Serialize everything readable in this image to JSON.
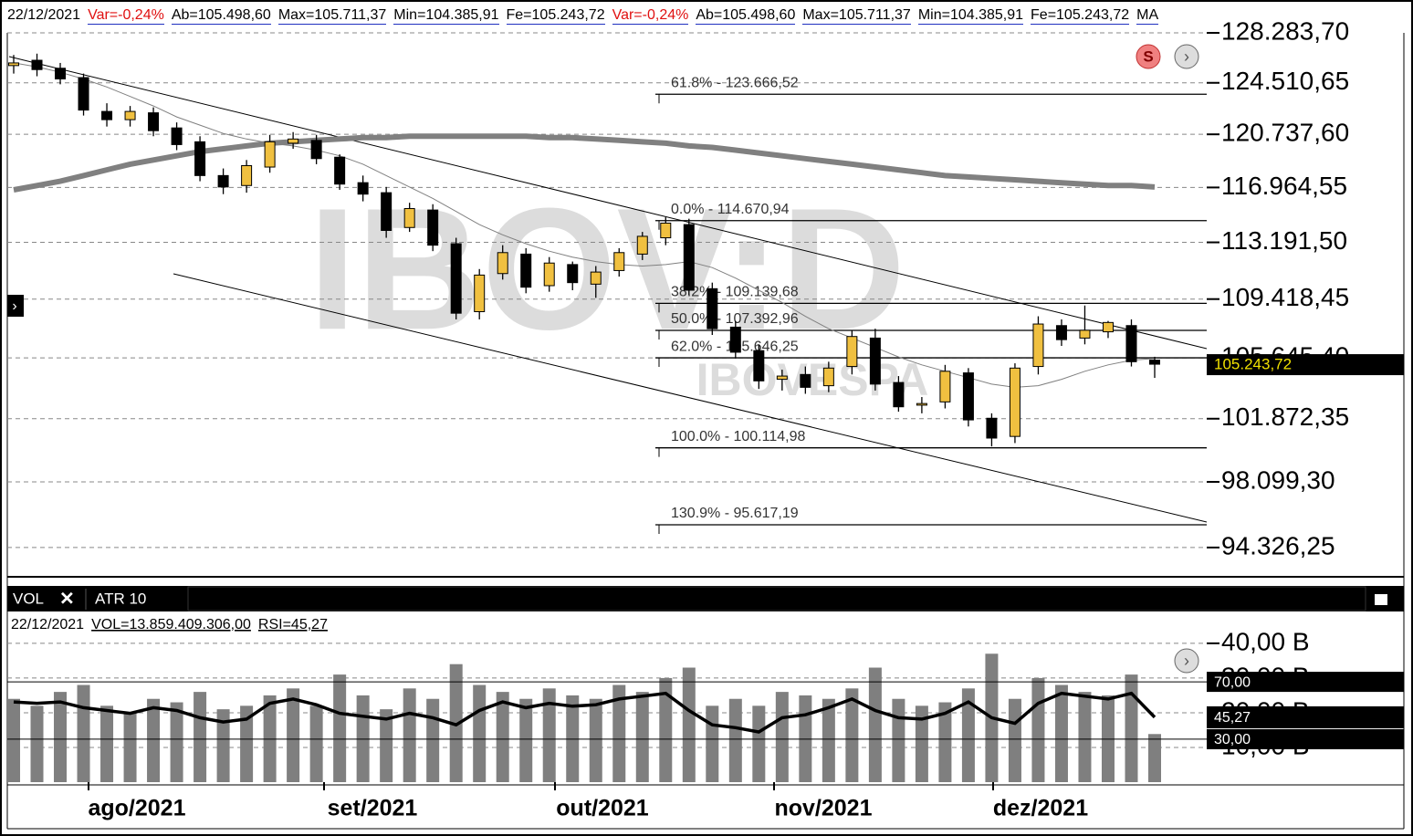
{
  "chart_data": {
    "type": "candlestick",
    "log": true,
    "header": [
      {
        "text": "22/12/2021",
        "color": "#000000"
      },
      {
        "text": "Var=-0,24%",
        "color": "#e01010"
      },
      {
        "text": "Ab=105.498,60",
        "color": "#000000"
      },
      {
        "text": "Max=105.711,37",
        "color": "#000000"
      },
      {
        "text": "Min=104.385,91",
        "color": "#000000"
      },
      {
        "text": "Fe=105.243,72",
        "color": "#000000"
      },
      {
        "text": "Var=-0,24%",
        "color": "#e01010"
      },
      {
        "text": "Ab=105.498,60",
        "color": "#000000"
      },
      {
        "text": "Max=105.711,37",
        "color": "#000000"
      },
      {
        "text": "Min=104.385,91",
        "color": "#000000"
      },
      {
        "text": "Fe=105.243,72",
        "color": "#000000"
      },
      {
        "text": "MA",
        "color": "#000000"
      }
    ],
    "watermark": [
      "IBOV:D",
      "IBOVESPA"
    ],
    "months": [
      "ago/2021",
      "set/2021",
      "out/2021",
      "nov/2021",
      "dez/2021"
    ],
    "ylim": [
      92690,
      128283.7
    ],
    "yticks": [
      {
        "value": 94326.25,
        "label": "94.326,25"
      },
      {
        "value": 98099.3,
        "label": "98.099,30"
      },
      {
        "value": 101872.35,
        "label": "101.872,35"
      },
      {
        "value": 105645.4,
        "label": "105.645,40"
      },
      {
        "value": 109418.45,
        "label": "109.418,45"
      },
      {
        "value": 113191.5,
        "label": "113.191,50"
      },
      {
        "value": 116964.55,
        "label": "116.964,55"
      },
      {
        "value": 120737.6,
        "label": "120.737,60"
      },
      {
        "value": 124510.65,
        "label": "124.510,65"
      },
      {
        "value": 128283.7,
        "label": "128.283,70"
      }
    ],
    "grid": true,
    "up_color": "#f0c040",
    "down_color": "#000000",
    "candles": {
      "open": [
        125800,
        126200,
        125600,
        124900,
        122400,
        121800,
        122300,
        121200,
        120200,
        117800,
        117100,
        118400,
        120100,
        120300,
        119100,
        117300,
        116600,
        114200,
        115400,
        113100,
        108600,
        111100,
        112400,
        110300,
        111700,
        110400,
        111300,
        112400,
        113500,
        114400,
        110100,
        107600,
        106100,
        104300,
        104600,
        103900,
        105100,
        106900,
        104100,
        102700,
        102900,
        104700,
        101900,
        100800,
        105100,
        107700,
        106900,
        107300,
        107700,
        105498.6
      ],
      "high": [
        126600,
        126700,
        126000,
        125200,
        123000,
        122800,
        122700,
        121600,
        120600,
        118300,
        118900,
        120700,
        120900,
        120700,
        119300,
        117800,
        117000,
        115900,
        115800,
        113500,
        111400,
        113000,
        112800,
        112200,
        111900,
        111600,
        112800,
        113900,
        114900,
        114800,
        110500,
        108000,
        106500,
        104900,
        105100,
        105400,
        107400,
        107500,
        104500,
        103200,
        105200,
        105000,
        102200,
        105300,
        108300,
        108100,
        109000,
        108000,
        108100,
        105711.37
      ],
      "low": [
        125200,
        125000,
        124400,
        122100,
        121300,
        121300,
        120600,
        119600,
        117400,
        116500,
        116600,
        118000,
        119700,
        118600,
        116800,
        116000,
        113500,
        113900,
        112600,
        108100,
        108100,
        110700,
        109800,
        109900,
        110000,
        109500,
        110900,
        112000,
        113000,
        109700,
        107100,
        105600,
        103700,
        103600,
        103400,
        103500,
        104600,
        103600,
        102300,
        102200,
        102500,
        101400,
        100200,
        100400,
        104600,
        106400,
        106500,
        106900,
        105100,
        104385.91
      ],
      "close": [
        126000,
        125500,
        124800,
        122500,
        121800,
        122400,
        121000,
        120000,
        117800,
        117000,
        118500,
        120200,
        120400,
        119000,
        117200,
        116500,
        114000,
        115500,
        113000,
        108500,
        111000,
        112500,
        110200,
        111800,
        110500,
        111200,
        112500,
        113600,
        114500,
        110000,
        107500,
        106000,
        104200,
        104500,
        103800,
        105000,
        107000,
        104000,
        102600,
        102800,
        104800,
        101800,
        100700,
        105000,
        107800,
        106800,
        107400,
        107900,
        105400,
        105243.72
      ]
    },
    "series": [
      {
        "color": "#808080",
        "width": 6,
        "values": [
          116800,
          117100,
          117400,
          117800,
          118200,
          118600,
          118900,
          119200,
          119500,
          119700,
          119900,
          120100,
          120200,
          120300,
          120400,
          120500,
          120500,
          120600,
          120600,
          120600,
          120600,
          120600,
          120600,
          120500,
          120500,
          120400,
          120300,
          120200,
          120100,
          119900,
          119800,
          119600,
          119400,
          119200,
          119000,
          118800,
          118600,
          118400,
          118200,
          118000,
          117800,
          117700,
          117600,
          117500,
          117400,
          117300,
          117200,
          117100,
          117100,
          117000
        ]
      },
      {
        "color": "#808080",
        "width": 1,
        "values": [
          126000,
          125700,
          125300,
          124800,
          124200,
          123500,
          122800,
          122000,
          121400,
          120800,
          120400,
          120100,
          119900,
          119600,
          119200,
          118600,
          117800,
          117000,
          116200,
          115300,
          114400,
          113700,
          113100,
          112600,
          112200,
          111900,
          111700,
          111600,
          111700,
          111900,
          111500,
          110800,
          110000,
          109200,
          108300,
          107500,
          106900,
          106300,
          105700,
          105200,
          104800,
          104400,
          104000,
          103800,
          103900,
          104300,
          104800,
          105200,
          105500,
          105600
        ]
      }
    ],
    "fibonacci": [
      {
        "value": 123666.52,
        "label": "61.8% - 123.666,52"
      },
      {
        "value": 114670.94,
        "label": "0.0% - 114.670,94"
      },
      {
        "value": 109139.68,
        "label": "38.2% - 109.139,68"
      },
      {
        "value": 107392.96,
        "label": "50.0% - 107.392,96"
      },
      {
        "value": 105646.25,
        "label": "62.0% - 105.646,25"
      },
      {
        "value": 100114.98,
        "label": "100.0% - 100.114,98"
      },
      {
        "value": 95617.19,
        "label": "130.9% - 95.617,19"
      }
    ],
    "last_price": {
      "value": 105243.72,
      "label": "105.243,72"
    },
    "volume_panel": {
      "tabs": [
        "VOL",
        "ATR 10"
      ],
      "info": [
        "22/12/2021",
        "VOL=13.859.409.306,00",
        "RSI=45,27"
      ],
      "color": "#7f7f7f",
      "ylim": [
        0,
        42600000000
      ],
      "yticks": [
        {
          "value": 10000000000,
          "label": "10,00 B"
        },
        {
          "value": 20000000000,
          "label": "20,00 B"
        },
        {
          "value": 30000000000,
          "label": "30,00 B"
        },
        {
          "value": 40000000000,
          "label": "40,00 B"
        }
      ],
      "values": [
        24000000000,
        22000000000,
        26000000000,
        28000000000,
        22000000000,
        20000000000,
        24000000000,
        23000000000,
        26000000000,
        21000000000,
        22000000000,
        25000000000,
        27000000000,
        22000000000,
        31000000000,
        25000000000,
        21000000000,
        27000000000,
        24000000000,
        34000000000,
        28000000000,
        26000000000,
        24000000000,
        27000000000,
        25000000000,
        24000000000,
        28000000000,
        26000000000,
        30000000000,
        33000000000,
        22000000000,
        24000000000,
        22000000000,
        26000000000,
        25000000000,
        24000000000,
        27000000000,
        33000000000,
        24000000000,
        22000000000,
        23000000000,
        27000000000,
        37000000000,
        24000000000,
        30000000000,
        28000000000,
        26000000000,
        25000000000,
        31000000000,
        13859409306
      ],
      "rsi": {
        "ylim": [
          0,
          100
        ],
        "color": "#000000",
        "levels": [
          {
            "value": 70,
            "label": "70,00"
          },
          {
            "value": 30,
            "label": "30,00"
          }
        ],
        "values": [
          56,
          55,
          56,
          52,
          50,
          48,
          52,
          50,
          45,
          42,
          44,
          55,
          58,
          54,
          48,
          46,
          44,
          48,
          45,
          40,
          50,
          56,
          52,
          55,
          53,
          54,
          58,
          60,
          62,
          50,
          40,
          38,
          35,
          45,
          47,
          52,
          58,
          50,
          45,
          44,
          48,
          56,
          45,
          41,
          55,
          62,
          60,
          58,
          62,
          45.27
        ],
        "value_labels": {
          "49": "45,27"
        }
      }
    }
  }
}
